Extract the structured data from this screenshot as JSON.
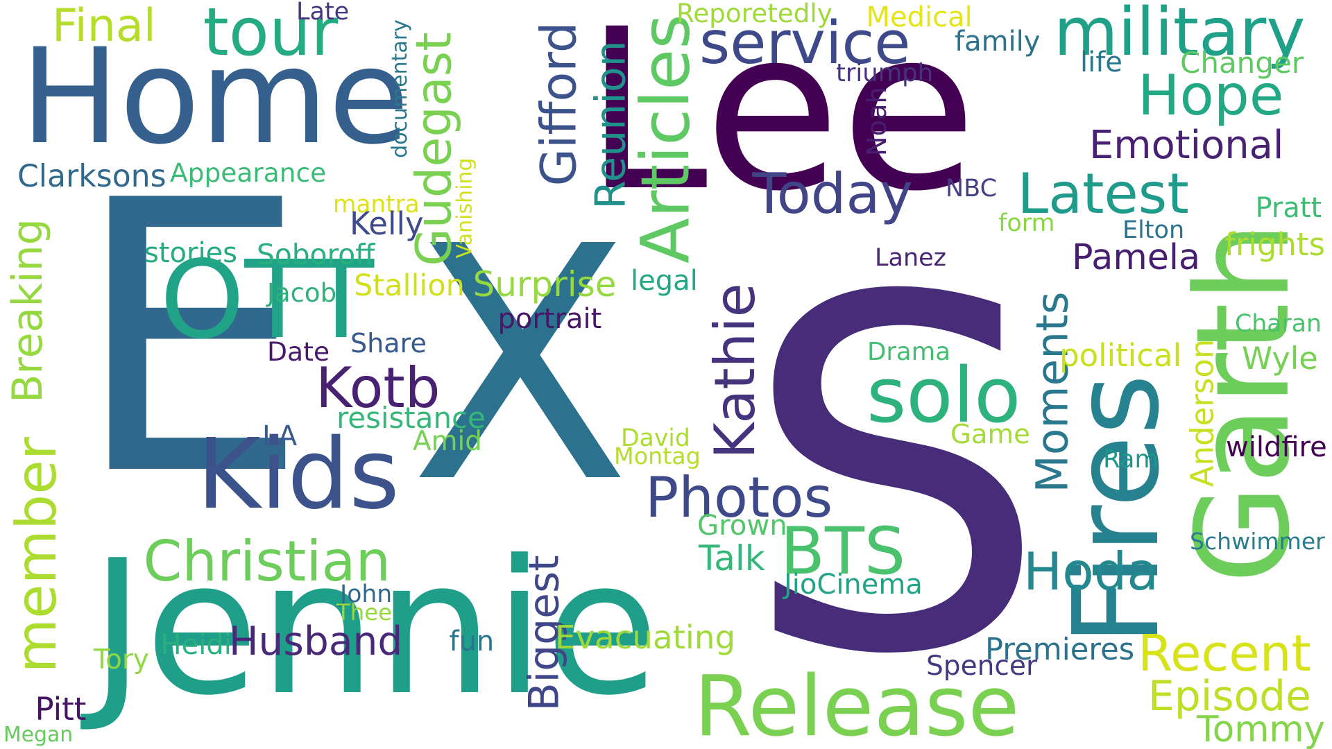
{
  "words": [
    {
      "text": "S",
      "color": "#472c7a"
    },
    {
      "text": "E",
      "color": "#31688e"
    },
    {
      "text": "X",
      "color": "#2c728e"
    },
    {
      "text": "Lee",
      "color": "#440154"
    },
    {
      "text": "Home",
      "color": "#355f8d"
    },
    {
      "text": "Jennie",
      "color": "#1f9e89"
    },
    {
      "text": "OTT",
      "color": "#20a386"
    },
    {
      "text": "Kids",
      "color": "#3b528b"
    },
    {
      "text": "Release",
      "color": "#7ad151"
    },
    {
      "text": "Fires",
      "color": "#26828e"
    },
    {
      "text": "Garth",
      "color": "#6ccd5a"
    },
    {
      "text": "military",
      "color": "#1fa088"
    },
    {
      "text": "tour",
      "color": "#25ab82"
    },
    {
      "text": "service",
      "color": "#3e4989"
    },
    {
      "text": "Final",
      "color": "#b5de2b"
    },
    {
      "text": "Hope",
      "color": "#22a884"
    },
    {
      "text": "Emotional",
      "color": "#482173"
    },
    {
      "text": "Latest",
      "color": "#1e9b8a"
    },
    {
      "text": "Today",
      "color": "#414487"
    },
    {
      "text": "Articles",
      "color": "#5ec962"
    },
    {
      "text": "Reunion",
      "color": "#21918c"
    },
    {
      "text": "Gifford",
      "color": "#3b528b"
    },
    {
      "text": "Gudegast",
      "color": "#7ad151"
    },
    {
      "text": "Breaking",
      "color": "#95d840"
    },
    {
      "text": "member",
      "color": "#addc30"
    },
    {
      "text": "Christian",
      "color": "#6ccd5a"
    },
    {
      "text": "Husband",
      "color": "#482878"
    },
    {
      "text": "Kotb",
      "color": "#482173"
    },
    {
      "text": "solo",
      "color": "#2db27d"
    },
    {
      "text": "Kathie",
      "color": "#46337e"
    },
    {
      "text": "BTS",
      "color": "#4ac16d"
    },
    {
      "text": "Photos",
      "color": "#3e4989"
    },
    {
      "text": "Hoda",
      "color": "#23898e"
    },
    {
      "text": "Recent",
      "color": "#d8e219"
    },
    {
      "text": "Episode",
      "color": "#bddf26"
    },
    {
      "text": "Tommy",
      "color": "#84d44b"
    },
    {
      "text": "Pamela",
      "color": "#481f70"
    },
    {
      "text": "Moments",
      "color": "#2a788e"
    },
    {
      "text": "Anderson",
      "color": "#c8e020"
    },
    {
      "text": "Biggest",
      "color": "#3f4788"
    },
    {
      "text": "Evacuating",
      "color": "#9fda3a"
    },
    {
      "text": "Surprise",
      "color": "#95d840"
    },
    {
      "text": "Clarksons",
      "color": "#31688e"
    },
    {
      "text": "Appearance",
      "color": "#3bbb75"
    },
    {
      "text": "documentary",
      "color": "#2a788e"
    },
    {
      "text": "Vanishing",
      "color": "#d0e11c"
    },
    {
      "text": "Noah",
      "color": "#481d6f"
    },
    {
      "text": "triumph",
      "color": "#46327e"
    },
    {
      "text": "Late",
      "color": "#453781"
    },
    {
      "text": "Reporetedly",
      "color": "#9fda3a"
    },
    {
      "text": "Medical",
      "color": "#e5e419"
    },
    {
      "text": "family",
      "color": "#2c728e"
    },
    {
      "text": "life",
      "color": "#2a788e"
    },
    {
      "text": "Changer",
      "color": "#5ec962"
    },
    {
      "text": "NBC",
      "color": "#433e85"
    },
    {
      "text": "form",
      "color": "#8bd646"
    },
    {
      "text": "Elton",
      "color": "#2c728e"
    },
    {
      "text": "Pratt",
      "color": "#3dbc74"
    },
    {
      "text": "frights",
      "color": "#addc30"
    },
    {
      "text": "Lanez",
      "color": "#482475"
    },
    {
      "text": "Charan",
      "color": "#4ac16d"
    },
    {
      "text": "political",
      "color": "#c8e020"
    },
    {
      "text": "Wyle",
      "color": "#75d054"
    },
    {
      "text": "wildfire",
      "color": "#440154"
    },
    {
      "text": "Ram",
      "color": "#1f968b"
    },
    {
      "text": "Schwimmer",
      "color": "#287c8e"
    },
    {
      "text": "Premieres",
      "color": "#2c728e"
    },
    {
      "text": "Spencer",
      "color": "#453882"
    },
    {
      "text": "Drama",
      "color": "#42be71"
    },
    {
      "text": "Game",
      "color": "#a5db36"
    },
    {
      "text": "Grown",
      "color": "#52c569"
    },
    {
      "text": "Talk",
      "color": "#35b779"
    },
    {
      "text": "JioCinema",
      "color": "#20a386"
    },
    {
      "text": "David",
      "color": "#addc30"
    },
    {
      "text": "Montag",
      "color": "#b5de2b"
    },
    {
      "text": "legal",
      "color": "#22a884"
    },
    {
      "text": "portrait",
      "color": "#481567"
    },
    {
      "text": "Share",
      "color": "#38598c"
    },
    {
      "text": "resistance",
      "color": "#35b779"
    },
    {
      "text": "Amid",
      "color": "#75d054"
    },
    {
      "text": "Date",
      "color": "#481a6c"
    },
    {
      "text": "Jacob",
      "color": "#2db27d"
    },
    {
      "text": "Stallion",
      "color": "#d0e11c"
    },
    {
      "text": "Soboroff",
      "color": "#2ab07f"
    },
    {
      "text": "stories",
      "color": "#25ab82"
    },
    {
      "text": "mantra",
      "color": "#dde318"
    },
    {
      "text": "Kelly",
      "color": "#3e4a89"
    },
    {
      "text": "LA",
      "color": "#38598c"
    },
    {
      "text": "John",
      "color": "#31688e"
    },
    {
      "text": "Thee",
      "color": "#95d840"
    },
    {
      "text": "fun",
      "color": "#2a768e"
    },
    {
      "text": "Heidi",
      "color": "#2ab07f"
    },
    {
      "text": "Tory",
      "color": "#90d743"
    },
    {
      "text": "Pitt",
      "color": "#471365"
    },
    {
      "text": "Megan",
      "color": "#65cb5e"
    }
  ]
}
